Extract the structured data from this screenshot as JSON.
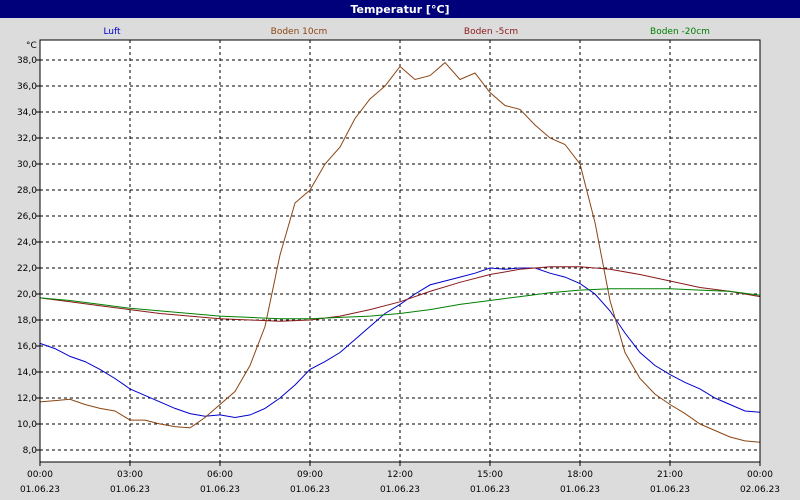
{
  "window": {
    "title": "Temperatur [°C]"
  },
  "chart_data": {
    "type": "line",
    "ylabel": "°C",
    "ylim": [
      8,
      40
    ],
    "yticks": [
      "8,0",
      "10,0",
      "12,0",
      "14,0",
      "16,0",
      "18,0",
      "20,0",
      "22,0",
      "24,0",
      "26,0",
      "28,0",
      "30,0",
      "32,0",
      "34,0",
      "36,0",
      "38,0"
    ],
    "xlim": [
      0,
      24
    ],
    "xticks": [
      {
        "time": "00:00",
        "date": "01.06.23"
      },
      {
        "time": "03:00",
        "date": "01.06.23"
      },
      {
        "time": "06:00",
        "date": "01.06.23"
      },
      {
        "time": "09:00",
        "date": "01.06.23"
      },
      {
        "time": "12:00",
        "date": "01.06.23"
      },
      {
        "time": "15:00",
        "date": "01.06.23"
      },
      {
        "time": "18:00",
        "date": "01.06.23"
      },
      {
        "time": "21:00",
        "date": "01.06.23"
      },
      {
        "time": "00:00",
        "date": "02.06.23"
      }
    ],
    "grid": true,
    "legend_position": "top",
    "series": [
      {
        "name": "Luft",
        "color": "#0000cc",
        "x": [
          0,
          0.5,
          1,
          1.5,
          2,
          2.5,
          3,
          3.5,
          4,
          4.5,
          5,
          5.5,
          6,
          6.5,
          7,
          7.5,
          8,
          8.5,
          9,
          9.5,
          10,
          10.5,
          11,
          11.5,
          12,
          12.5,
          13,
          13.5,
          14,
          14.5,
          15,
          15.5,
          16,
          16.5,
          17,
          17.5,
          18,
          18.5,
          19,
          19.5,
          20,
          20.5,
          21,
          21.5,
          22,
          22.5,
          23,
          23.5,
          24
        ],
        "y": [
          16.2,
          15.8,
          15.2,
          14.8,
          14.2,
          13.5,
          12.7,
          12.2,
          11.7,
          11.2,
          10.8,
          10.6,
          10.7,
          10.5,
          10.7,
          11.2,
          12.0,
          13.0,
          14.2,
          14.8,
          15.5,
          16.5,
          17.5,
          18.5,
          19.2,
          20.0,
          20.7,
          21.0,
          21.3,
          21.6,
          22.0,
          21.9,
          22.0,
          22.0,
          21.6,
          21.3,
          20.8,
          20.0,
          18.7,
          17.0,
          15.5,
          14.5,
          13.8,
          13.2,
          12.7,
          12.0,
          11.5,
          11.0,
          10.9
        ]
      },
      {
        "name": "Boden 10cm",
        "color": "#8b4513",
        "x": [
          0,
          0.5,
          1,
          1.5,
          2,
          2.5,
          3,
          3.5,
          4,
          4.5,
          5,
          5.5,
          6,
          6.5,
          7,
          7.5,
          8,
          8.5,
          9,
          9.5,
          10,
          10.5,
          11,
          11.5,
          12,
          12.5,
          13,
          13.5,
          14,
          14.5,
          15,
          15.5,
          16,
          16.5,
          17,
          17.5,
          18,
          18.5,
          19,
          19.5,
          20,
          20.5,
          21,
          21.5,
          22,
          22.5,
          23,
          23.5,
          24
        ],
        "y": [
          11.7,
          11.8,
          11.9,
          11.5,
          11.2,
          11.0,
          10.3,
          10.3,
          10.0,
          9.8,
          9.7,
          10.5,
          11.5,
          12.5,
          14.5,
          17.5,
          23.0,
          27.0,
          28.0,
          30.0,
          31.3,
          33.5,
          35.0,
          36.0,
          37.5,
          36.5,
          36.8,
          37.8,
          36.5,
          37.0,
          35.5,
          34.5,
          34.2,
          33.0,
          32.0,
          31.5,
          30.0,
          25.5,
          19.5,
          15.5,
          13.5,
          12.3,
          11.5,
          10.8,
          10.0,
          9.5,
          9.0,
          8.7,
          8.6
        ]
      },
      {
        "name": "Boden -5cm",
        "color": "#8b1a1a",
        "x": [
          0,
          1,
          2,
          3,
          4,
          5,
          6,
          7,
          8,
          9,
          10,
          11,
          12,
          13,
          14,
          15,
          16,
          17,
          18,
          19,
          20,
          21,
          22,
          23,
          24
        ],
        "y": [
          19.7,
          19.4,
          19.1,
          18.8,
          18.5,
          18.3,
          18.1,
          18.0,
          17.9,
          18.0,
          18.3,
          18.8,
          19.4,
          20.2,
          20.9,
          21.5,
          21.9,
          22.1,
          22.1,
          21.9,
          21.5,
          21.0,
          20.5,
          20.2,
          19.8
        ]
      },
      {
        "name": "Boden -20cm",
        "color": "#008000",
        "x": [
          0,
          1,
          2,
          3,
          4,
          5,
          6,
          7,
          8,
          9,
          10,
          11,
          12,
          13,
          14,
          15,
          16,
          17,
          18,
          19,
          20,
          21,
          22,
          23,
          24
        ],
        "y": [
          19.7,
          19.5,
          19.2,
          18.9,
          18.7,
          18.5,
          18.3,
          18.2,
          18.1,
          18.1,
          18.2,
          18.3,
          18.5,
          18.8,
          19.2,
          19.5,
          19.8,
          20.1,
          20.3,
          20.4,
          20.4,
          20.4,
          20.3,
          20.2,
          19.9
        ]
      }
    ]
  }
}
